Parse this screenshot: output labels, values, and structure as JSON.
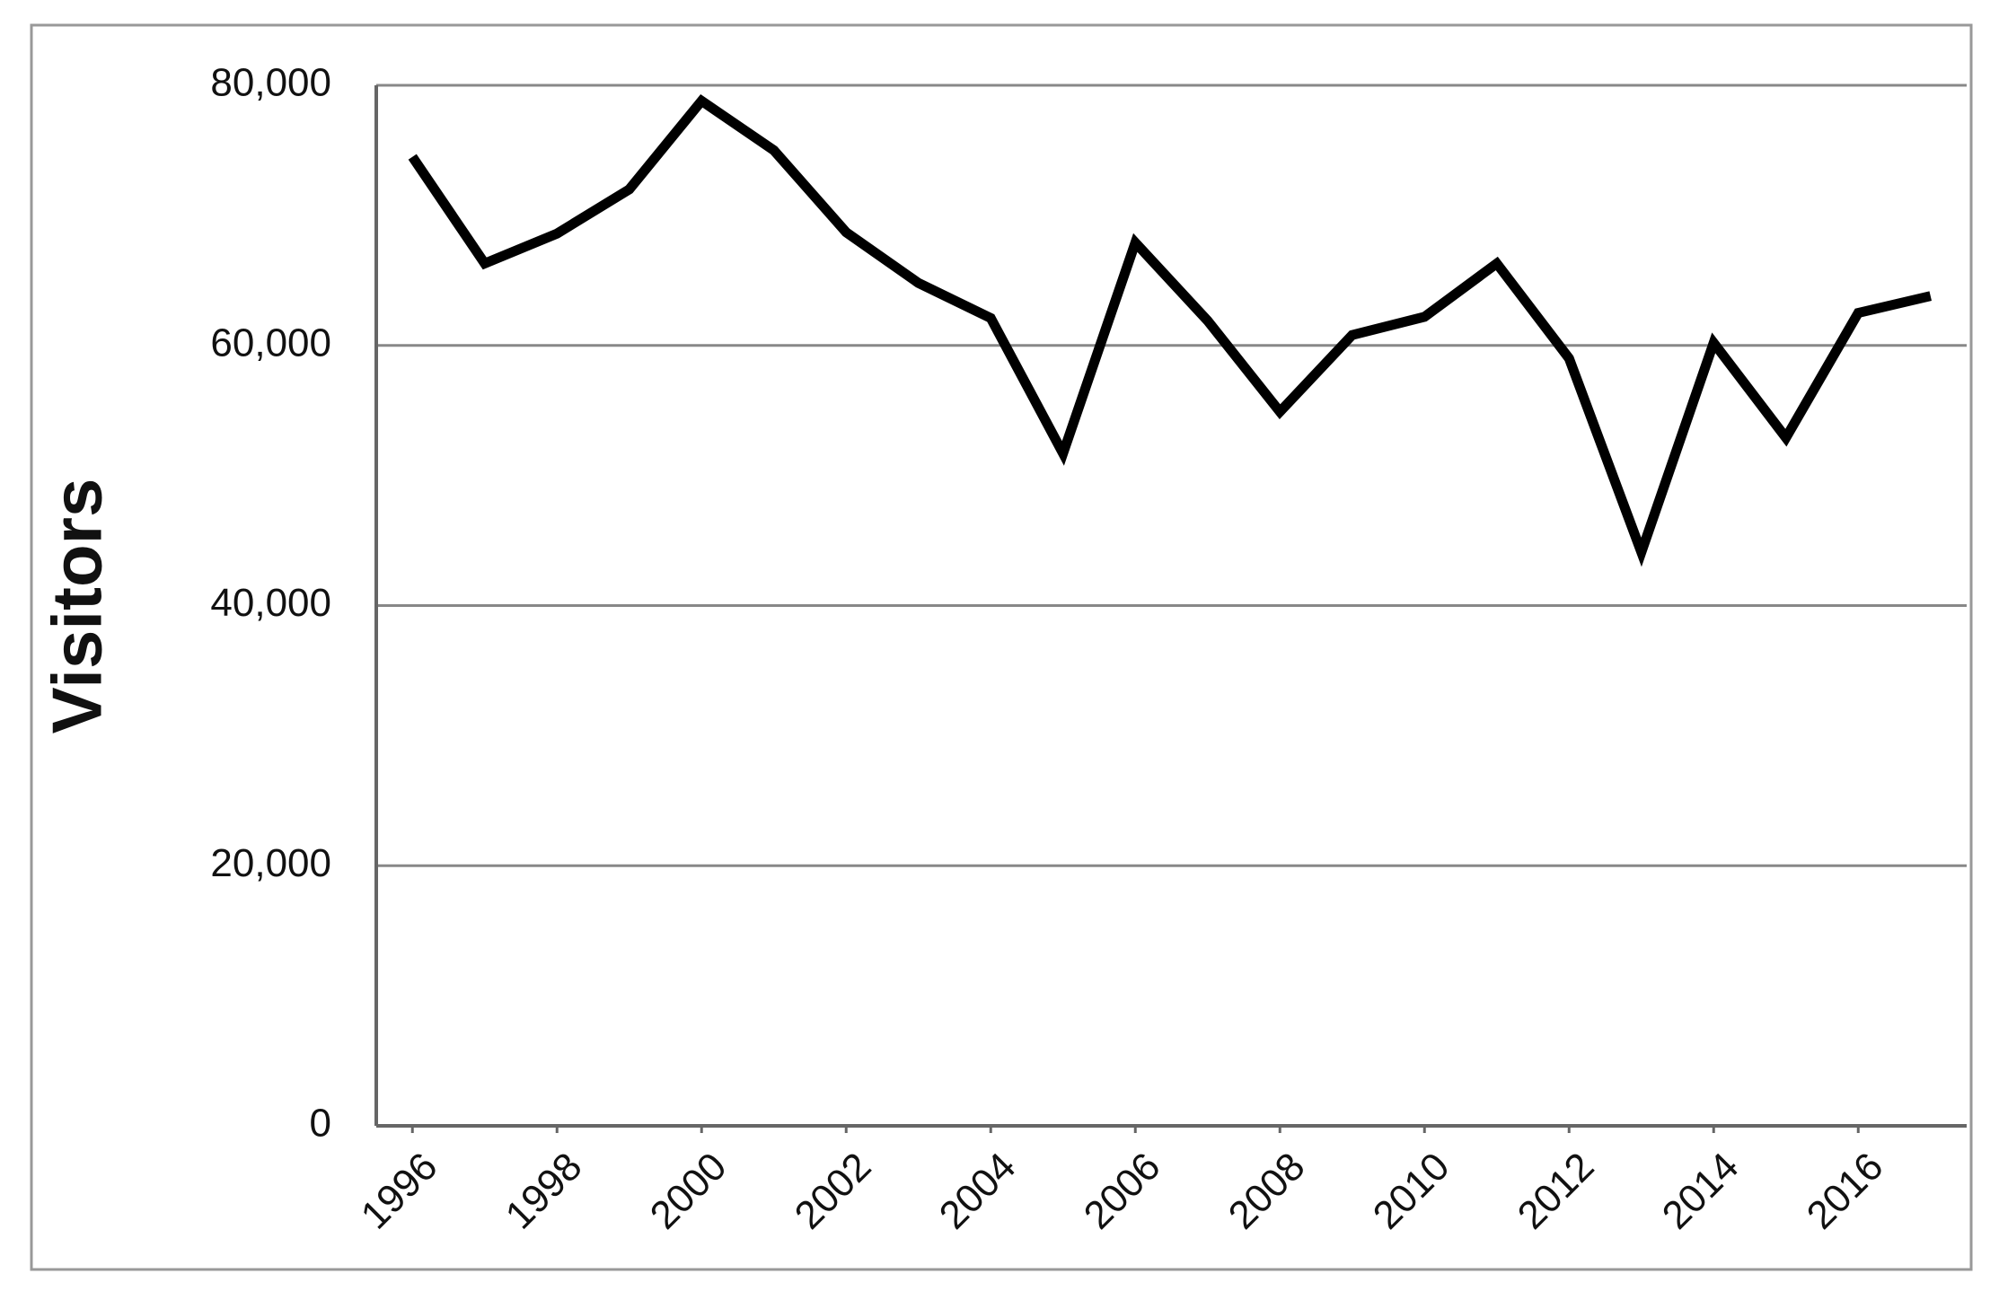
{
  "chart_data": {
    "type": "line",
    "y_label": "Visitors",
    "x": [
      1996,
      1997,
      1998,
      1999,
      2000,
      2001,
      2002,
      2003,
      2004,
      2005,
      2006,
      2007,
      2008,
      2009,
      2010,
      2011,
      2012,
      2013,
      2014,
      2015,
      2016,
      2017
    ],
    "series": [
      {
        "color": "#000000",
        "values": [
          74500,
          66300,
          68600,
          72000,
          78800,
          75000,
          68700,
          64800,
          62100,
          51700,
          67900,
          61900,
          54900,
          60800,
          62200,
          66300,
          59000,
          44100,
          60200,
          52900,
          62500,
          63800
        ]
      }
    ],
    "xlim": [
      1995.5,
      2017.5
    ],
    "xticks": [
      1996,
      1998,
      2000,
      2002,
      2004,
      2006,
      2008,
      2010,
      2012,
      2014,
      2016
    ],
    "ylim": [
      0,
      80000
    ],
    "yticks": [
      0,
      {
        "value": 20000,
        "label": "20,000"
      },
      {
        "value": 40000,
        "label": "40,000"
      },
      {
        "value": 60000,
        "label": "60,000"
      },
      {
        "value": 80000,
        "label": "80,000"
      }
    ],
    "grid": true
  }
}
